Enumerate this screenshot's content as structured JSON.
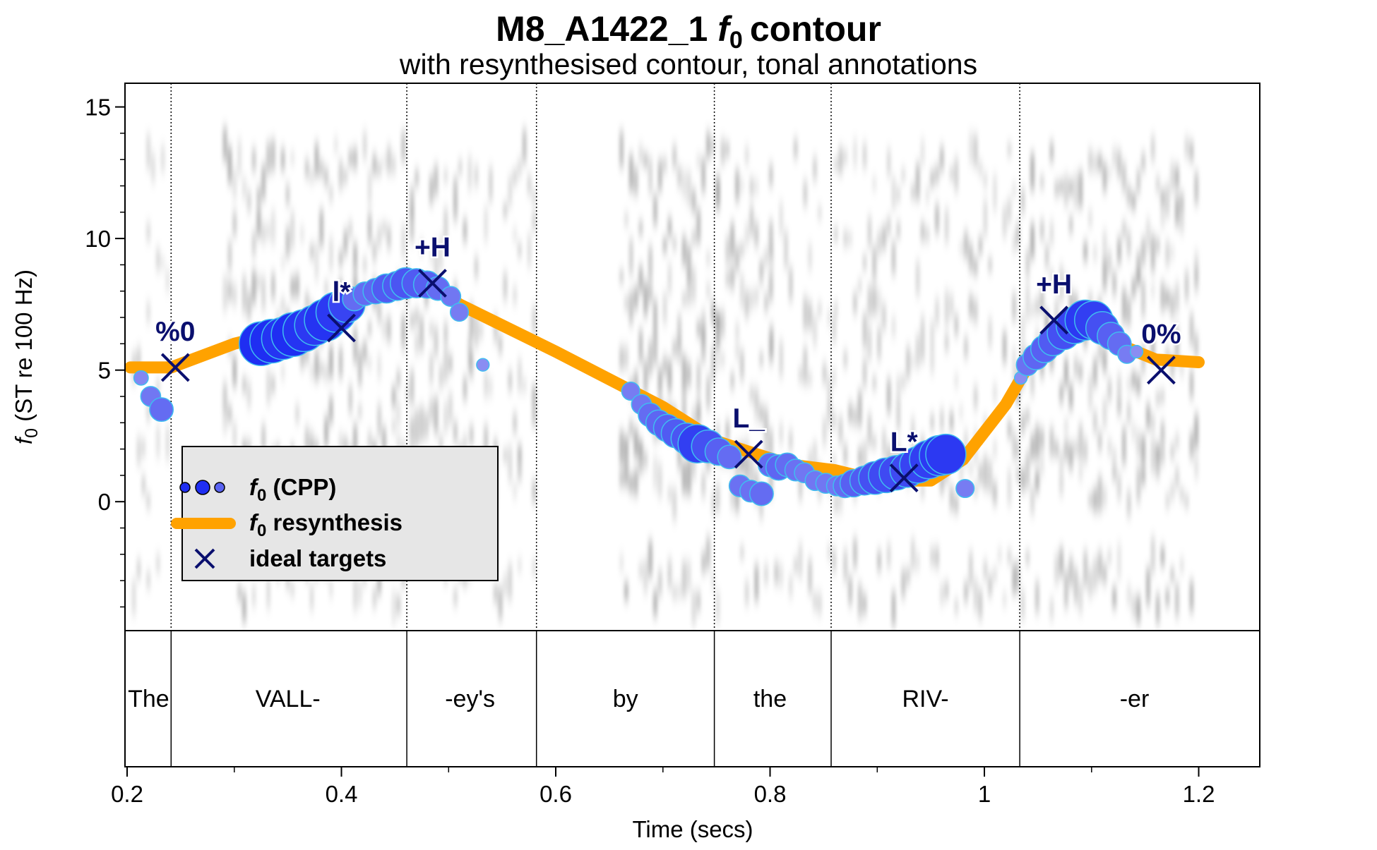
{
  "chart_data": {
    "type": "scatter",
    "title": {
      "main": "M8_A1422_1",
      "f": "f",
      "sub0": "0",
      "suffix": "contour"
    },
    "subtitle": "with resynthesised contour, tonal annotations",
    "xlabel": "Time (secs)",
    "ylabel": {
      "f": "f",
      "sub0": "0",
      "rest": " (ST re 100 Hz)"
    },
    "xlim": [
      0.198,
      1.257
    ],
    "ylim": [
      -4.9,
      15.9
    ],
    "x_ticks": [
      {
        "value": 0.2,
        "label": "0.2"
      },
      {
        "value": 0.4,
        "label": "0.4"
      },
      {
        "value": 0.6,
        "label": "0.6"
      },
      {
        "value": 0.8,
        "label": "0.8"
      },
      {
        "value": 1.0,
        "label": "1"
      },
      {
        "value": 1.2,
        "label": "1.2"
      }
    ],
    "y_ticks": [
      {
        "value": 0,
        "label": "0"
      },
      {
        "value": 5,
        "label": "5"
      },
      {
        "value": 10,
        "label": "10"
      },
      {
        "value": 15,
        "label": "15"
      }
    ],
    "word_boundaries": [
      0.241,
      0.461,
      0.582,
      0.748,
      0.857,
      1.033
    ],
    "words": [
      {
        "label": "The",
        "x": 0.22
      },
      {
        "label": "VALL-",
        "x": 0.35
      },
      {
        "label": "-ey's",
        "x": 0.52
      },
      {
        "label": "by",
        "x": 0.665
      },
      {
        "label": "the",
        "x": 0.8
      },
      {
        "label": "RIV-",
        "x": 0.945
      },
      {
        "label": "-er",
        "x": 1.14
      }
    ],
    "series": [
      {
        "name": "(CPP)",
        "kind": "f0-cpp",
        "points": [
          [
            0.213,
            4.7,
            0.2
          ],
          [
            0.222,
            4.0,
            0.35
          ],
          [
            0.232,
            3.5,
            0.45
          ],
          [
            0.325,
            6.0,
            1.0
          ],
          [
            0.335,
            6.1,
            1.0
          ],
          [
            0.345,
            6.2,
            0.95
          ],
          [
            0.355,
            6.35,
            1.0
          ],
          [
            0.365,
            6.5,
            0.95
          ],
          [
            0.375,
            6.7,
            0.9
          ],
          [
            0.385,
            6.9,
            0.95
          ],
          [
            0.395,
            7.2,
            0.9
          ],
          [
            0.405,
            7.5,
            0.8
          ],
          [
            0.412,
            7.7,
            0.45
          ],
          [
            0.422,
            7.9,
            0.45
          ],
          [
            0.432,
            8.0,
            0.5
          ],
          [
            0.442,
            8.1,
            0.6
          ],
          [
            0.452,
            8.2,
            0.6
          ],
          [
            0.46,
            8.3,
            0.65
          ],
          [
            0.47,
            8.3,
            0.6
          ],
          [
            0.48,
            8.25,
            0.55
          ],
          [
            0.49,
            8.1,
            0.45
          ],
          [
            0.502,
            7.8,
            0.35
          ],
          [
            0.51,
            7.2,
            0.3
          ],
          [
            0.532,
            5.2,
            0.15
          ],
          [
            0.67,
            4.2,
            0.3
          ],
          [
            0.68,
            3.7,
            0.35
          ],
          [
            0.688,
            3.3,
            0.45
          ],
          [
            0.696,
            3.0,
            0.5
          ],
          [
            0.704,
            2.8,
            0.55
          ],
          [
            0.712,
            2.6,
            0.6
          ],
          [
            0.722,
            2.4,
            0.65
          ],
          [
            0.732,
            2.2,
            0.85
          ],
          [
            0.742,
            2.1,
            0.7
          ],
          [
            0.752,
            1.9,
            0.55
          ],
          [
            0.762,
            1.7,
            0.45
          ],
          [
            0.772,
            0.6,
            0.4
          ],
          [
            0.782,
            0.4,
            0.4
          ],
          [
            0.792,
            0.3,
            0.45
          ],
          [
            0.8,
            1.4,
            0.45
          ],
          [
            0.808,
            1.3,
            0.5
          ],
          [
            0.816,
            1.4,
            0.45
          ],
          [
            0.824,
            1.2,
            0.4
          ],
          [
            0.832,
            1.1,
            0.35
          ],
          [
            0.842,
            0.8,
            0.35
          ],
          [
            0.852,
            0.7,
            0.35
          ],
          [
            0.862,
            0.6,
            0.35
          ],
          [
            0.87,
            0.6,
            0.45
          ],
          [
            0.878,
            0.7,
            0.55
          ],
          [
            0.888,
            0.8,
            0.6
          ],
          [
            0.898,
            0.9,
            0.7
          ],
          [
            0.908,
            1.0,
            0.75
          ],
          [
            0.918,
            1.1,
            0.75
          ],
          [
            0.928,
            1.2,
            0.75
          ],
          [
            0.938,
            1.4,
            0.8
          ],
          [
            0.948,
            1.6,
            0.85
          ],
          [
            0.958,
            1.75,
            0.9
          ],
          [
            0.964,
            1.8,
            0.9
          ],
          [
            0.982,
            0.5,
            0.3
          ],
          [
            1.034,
            4.7,
            0.15
          ],
          [
            1.04,
            5.2,
            0.4
          ],
          [
            1.048,
            5.5,
            0.5
          ],
          [
            1.056,
            5.8,
            0.55
          ],
          [
            1.064,
            6.1,
            0.6
          ],
          [
            1.074,
            6.4,
            0.7
          ],
          [
            1.084,
            6.7,
            0.8
          ],
          [
            1.094,
            6.9,
            0.9
          ],
          [
            1.102,
            6.9,
            0.85
          ],
          [
            1.11,
            6.6,
            0.7
          ],
          [
            1.118,
            6.3,
            0.55
          ],
          [
            1.126,
            6.0,
            0.45
          ],
          [
            1.133,
            5.6,
            0.3
          ],
          [
            1.142,
            5.7,
            0.15
          ]
        ]
      },
      {
        "name": "resynthesis",
        "kind": "f0-resynthesis",
        "color": "#ffa200",
        "points": [
          [
            0.203,
            5.1
          ],
          [
            0.241,
            5.1
          ],
          [
            0.3,
            6.0
          ],
          [
            0.34,
            6.4
          ],
          [
            0.39,
            7.2
          ],
          [
            0.44,
            8.0
          ],
          [
            0.482,
            8.3
          ],
          [
            0.51,
            7.5
          ],
          [
            0.6,
            5.7
          ],
          [
            0.7,
            3.6
          ],
          [
            0.75,
            2.3
          ],
          [
            0.78,
            1.9
          ],
          [
            0.82,
            1.4
          ],
          [
            0.86,
            1.2
          ],
          [
            0.9,
            0.8
          ],
          [
            0.95,
            0.8
          ],
          [
            0.98,
            1.6
          ],
          [
            1.02,
            3.7
          ],
          [
            1.05,
            5.8
          ],
          [
            1.08,
            6.7
          ],
          [
            1.1,
            6.75
          ],
          [
            1.13,
            5.9
          ],
          [
            1.16,
            5.4
          ],
          [
            1.2,
            5.3
          ]
        ]
      },
      {
        "name": "ideal targets",
        "kind": "ideal-targets",
        "color": "#0a0f6e",
        "points": [
          [
            0.245,
            5.1,
            "%0"
          ],
          [
            0.4,
            6.6,
            "l*"
          ],
          [
            0.485,
            8.3,
            "+H"
          ],
          [
            0.78,
            1.8,
            "L_"
          ],
          [
            0.925,
            0.9,
            "L*"
          ],
          [
            1.065,
            6.9,
            "+H"
          ],
          [
            1.165,
            5.0,
            "0%"
          ]
        ]
      }
    ],
    "legend": {
      "position": "lower-left",
      "items": [
        {
          "f": "f",
          "sub": "0",
          "text": " (CPP)"
        },
        {
          "f": "f",
          "sub": "0",
          "text": " resynthesis"
        },
        {
          "text": "ideal targets"
        }
      ]
    },
    "colors": {
      "cpp_large": "#1f2ef2",
      "cpp_small": "#9d9ef2",
      "cpp_edge": "#3fbdf0",
      "resynthesis": "#ffa200",
      "target": "#0a0f6e",
      "legend_bg": "#e6e6e6"
    },
    "grid": false
  }
}
